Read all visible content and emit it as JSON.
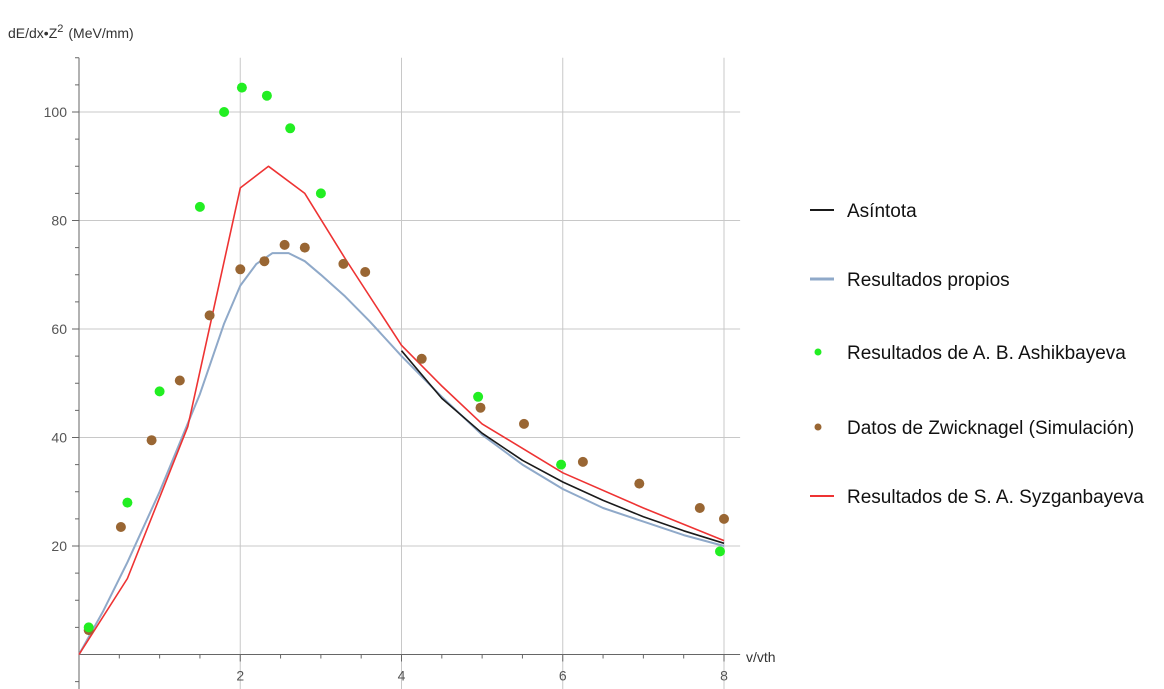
{
  "chart_data": {
    "type": "line",
    "title": "",
    "xlabel": "v/vth",
    "ylabel": "dE/dx•Z² (MeV/mm)",
    "ylabel_parts": {
      "main": "dE/dx•Z",
      "sup": "2",
      "unit": "(MeV/mm)"
    },
    "xlim": [
      0,
      8.2
    ],
    "ylim": [
      -12,
      110
    ],
    "xticks": [
      2,
      4,
      6,
      8
    ],
    "yticks": [
      20,
      40,
      60,
      80,
      100
    ],
    "grid": true,
    "legend_position": "right",
    "series": [
      {
        "name": "Asíntota",
        "kind": "line",
        "color": "#1a1a1a",
        "points": [
          [
            4.0,
            56.0
          ],
          [
            4.5,
            47.2
          ],
          [
            5.0,
            40.8
          ],
          [
            5.5,
            35.8
          ],
          [
            6.0,
            31.8
          ],
          [
            6.5,
            28.4
          ],
          [
            7.0,
            25.4
          ],
          [
            7.5,
            22.8
          ],
          [
            8.0,
            20.5
          ]
        ]
      },
      {
        "name": "Resultados propios",
        "kind": "line",
        "color": "#8fa9c9",
        "points": [
          [
            0.0,
            0.0
          ],
          [
            0.3,
            8.0
          ],
          [
            0.6,
            17.0
          ],
          [
            1.0,
            30.0
          ],
          [
            1.5,
            48.0
          ],
          [
            1.8,
            61.0
          ],
          [
            2.0,
            68.0
          ],
          [
            2.2,
            72.0
          ],
          [
            2.4,
            74.0
          ],
          [
            2.6,
            74.0
          ],
          [
            2.8,
            72.5
          ],
          [
            3.0,
            70.0
          ],
          [
            3.3,
            66.0
          ],
          [
            3.6,
            61.5
          ],
          [
            4.0,
            55.0
          ],
          [
            4.5,
            47.5
          ],
          [
            5.0,
            40.5
          ],
          [
            5.5,
            35.0
          ],
          [
            6.0,
            30.5
          ],
          [
            6.5,
            27.0
          ],
          [
            7.0,
            24.5
          ],
          [
            7.5,
            22.0
          ],
          [
            8.0,
            20.0
          ]
        ]
      },
      {
        "name": "Resultados de A. B. Ashikbayeva",
        "kind": "scatter",
        "color": "#22ee22",
        "points": [
          [
            0.12,
            5.0
          ],
          [
            0.6,
            28.0
          ],
          [
            1.0,
            48.5
          ],
          [
            1.5,
            82.5
          ],
          [
            1.8,
            100.0
          ],
          [
            2.02,
            104.5
          ],
          [
            2.33,
            103.0
          ],
          [
            2.62,
            97.0
          ],
          [
            3.0,
            85.0
          ],
          [
            4.95,
            47.5
          ],
          [
            5.98,
            35.0
          ],
          [
            7.95,
            19.0
          ]
        ]
      },
      {
        "name": "Datos de Zwicknagel (Simulación)",
        "kind": "scatter",
        "color": "#996633",
        "points": [
          [
            0.12,
            4.5
          ],
          [
            0.52,
            23.5
          ],
          [
            0.9,
            39.5
          ],
          [
            1.25,
            50.5
          ],
          [
            1.62,
            62.5
          ],
          [
            2.0,
            71.0
          ],
          [
            2.3,
            72.5
          ],
          [
            2.55,
            75.5
          ],
          [
            2.8,
            75.0
          ],
          [
            3.28,
            72.0
          ],
          [
            3.55,
            70.5
          ],
          [
            4.25,
            54.5
          ],
          [
            4.98,
            45.5
          ],
          [
            5.52,
            42.5
          ],
          [
            6.25,
            35.5
          ],
          [
            6.95,
            31.5
          ],
          [
            7.7,
            27.0
          ],
          [
            8.0,
            25.0
          ]
        ]
      },
      {
        "name": "Resultados de S. A. Syzganbayeva",
        "kind": "line",
        "color": "#ee3333",
        "points": [
          [
            0.0,
            0.0
          ],
          [
            0.6,
            14.0
          ],
          [
            1.35,
            42.0
          ],
          [
            2.0,
            86.0
          ],
          [
            2.35,
            90.0
          ],
          [
            2.8,
            85.0
          ],
          [
            3.3,
            73.0
          ],
          [
            4.0,
            57.0
          ],
          [
            4.5,
            49.5
          ],
          [
            5.0,
            42.5
          ],
          [
            6.0,
            33.5
          ],
          [
            7.0,
            27.0
          ],
          [
            8.0,
            21.0
          ]
        ]
      }
    ]
  }
}
